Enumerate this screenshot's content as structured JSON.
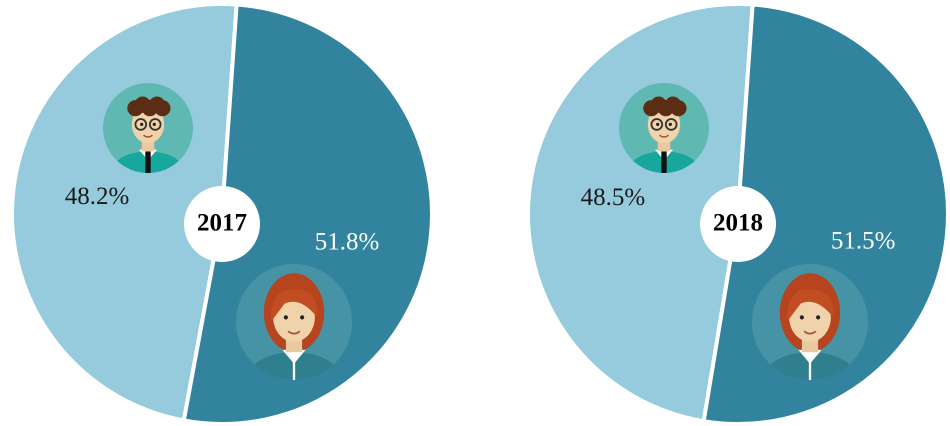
{
  "chart_data": [
    {
      "type": "pie",
      "center_label": "2017",
      "values": [
        48.2,
        51.8
      ],
      "value_labels": [
        "48.2%",
        "51.8%"
      ],
      "colors": [
        "#96cbdd",
        "#31839e"
      ],
      "label_colors": [
        "#1a1a1a",
        "#ffffff"
      ]
    },
    {
      "type": "pie",
      "center_label": "2018",
      "values": [
        48.5,
        51.5
      ],
      "value_labels": [
        "48.5%",
        "51.5%"
      ],
      "colors": [
        "#96cbdd",
        "#31839e"
      ],
      "label_colors": [
        "#1a1a1a",
        "#ffffff"
      ]
    }
  ]
}
